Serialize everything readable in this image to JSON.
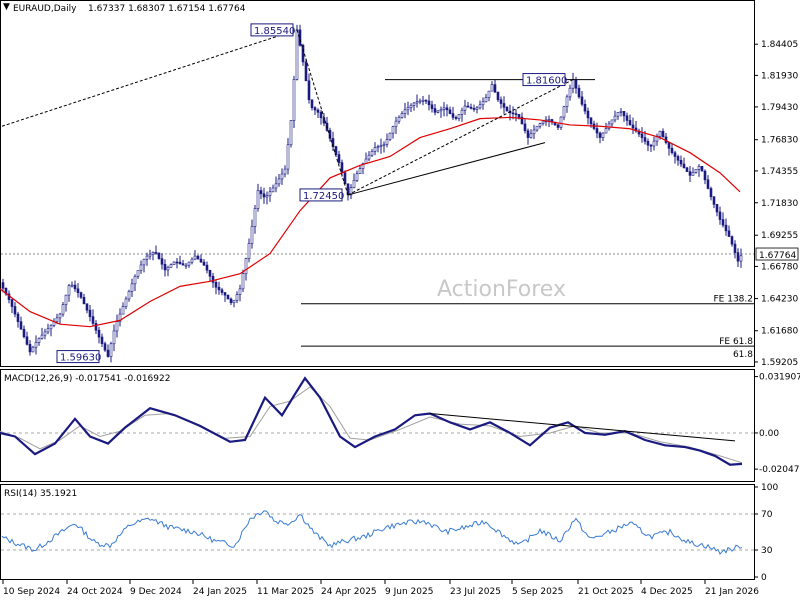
{
  "header": {
    "symbol": "EURAUD,Daily",
    "ohlc": "1.67337 1.68307 1.67154 1.67764",
    "macd": "MACD(12,26,9) -0.017541 -0.016922",
    "rsi": "RSI(14) 35.1921",
    "watermark": "ActionForex"
  },
  "colors": {
    "candles": "#1a1a80",
    "ma": "#e00000",
    "macd_line": "#1a1a80",
    "signal_line": "#a0a0a0",
    "rsi_line": "#3a7bd5"
  },
  "chart_data": [
    {
      "type": "candlestick",
      "title": "",
      "series": [
        {
          "name": "",
          "kind": "price"
        },
        {
          "name": "",
          "kind": "moving-average"
        }
      ],
      "ylim": [
        1.592,
        1.868
      ],
      "y_ticks": [
        "1.84405",
        "1.81930",
        "1.79430",
        "1.76830",
        "1.74355",
        "1.71830",
        "1.69255",
        "1.66780",
        "1.64230",
        "1.61680",
        "1.59205"
      ],
      "current_price": "1.67764",
      "x_ticks": [
        "10 Sep 2024",
        "24 Oct 2024",
        "9 Dec 2024",
        "24 Jan 2025",
        "11 Mar 2025",
        "24 Apr 2025",
        "9 Jun 2025",
        "23 Jul 2025",
        "5 Sep 2025",
        "21 Oct 2025",
        "4 Dec 2025",
        "21 Jan 2026"
      ],
      "price_path": [
        [
          0,
          1.655
        ],
        [
          10,
          1.64
        ],
        [
          20,
          1.62
        ],
        [
          30,
          1.6
        ],
        [
          38,
          1.61
        ],
        [
          50,
          1.62
        ],
        [
          60,
          1.63
        ],
        [
          70,
          1.655
        ],
        [
          80,
          1.645
        ],
        [
          90,
          1.628
        ],
        [
          100,
          1.61
        ],
        [
          108,
          1.5963
        ],
        [
          115,
          1.62
        ],
        [
          125,
          1.64
        ],
        [
          135,
          1.66
        ],
        [
          145,
          1.675
        ],
        [
          155,
          1.68
        ],
        [
          165,
          1.665
        ],
        [
          175,
          1.672
        ],
        [
          185,
          1.668
        ],
        [
          195,
          1.676
        ],
        [
          205,
          1.668
        ],
        [
          215,
          1.652
        ],
        [
          225,
          1.645
        ],
        [
          232,
          1.638
        ],
        [
          240,
          1.65
        ],
        [
          250,
          1.69
        ],
        [
          258,
          1.728
        ],
        [
          265,
          1.722
        ],
        [
          275,
          1.732
        ],
        [
          285,
          1.745
        ],
        [
          292,
          1.79
        ],
        [
          297,
          1.8554
        ],
        [
          302,
          1.835
        ],
        [
          310,
          1.795
        ],
        [
          318,
          1.79
        ],
        [
          325,
          1.78
        ],
        [
          332,
          1.765
        ],
        [
          340,
          1.748
        ],
        [
          348,
          1.7245
        ],
        [
          356,
          1.74
        ],
        [
          365,
          1.752
        ],
        [
          375,
          1.762
        ],
        [
          385,
          1.765
        ],
        [
          395,
          1.782
        ],
        [
          405,
          1.792
        ],
        [
          415,
          1.798
        ],
        [
          425,
          1.8
        ],
        [
          435,
          1.79
        ],
        [
          445,
          1.794
        ],
        [
          455,
          1.784
        ],
        [
          465,
          1.795
        ],
        [
          475,
          1.792
        ],
        [
          485,
          1.8
        ],
        [
          492,
          1.812
        ],
        [
          498,
          1.8
        ],
        [
          508,
          1.79
        ],
        [
          518,
          1.788
        ],
        [
          528,
          1.77
        ],
        [
          538,
          1.78
        ],
        [
          548,
          1.785
        ],
        [
          558,
          1.778
        ],
        [
          566,
          1.8
        ],
        [
          573,
          1.816
        ],
        [
          580,
          1.8
        ],
        [
          590,
          1.782
        ],
        [
          600,
          1.77
        ],
        [
          610,
          1.782
        ],
        [
          620,
          1.792
        ],
        [
          630,
          1.78
        ],
        [
          640,
          1.772
        ],
        [
          650,
          1.762
        ],
        [
          660,
          1.775
        ],
        [
          670,
          1.76
        ],
        [
          680,
          1.75
        ],
        [
          690,
          1.74
        ],
        [
          700,
          1.748
        ],
        [
          710,
          1.725
        ],
        [
          720,
          1.705
        ],
        [
          730,
          1.69
        ],
        [
          738,
          1.672
        ],
        [
          742,
          1.67764
        ]
      ],
      "ma_path": [
        [
          0,
          1.65
        ],
        [
          30,
          1.632
        ],
        [
          60,
          1.622
        ],
        [
          90,
          1.62
        ],
        [
          120,
          1.625
        ],
        [
          150,
          1.64
        ],
        [
          180,
          1.652
        ],
        [
          210,
          1.656
        ],
        [
          240,
          1.662
        ],
        [
          270,
          1.678
        ],
        [
          300,
          1.712
        ],
        [
          330,
          1.738
        ],
        [
          360,
          1.748
        ],
        [
          390,
          1.755
        ],
        [
          420,
          1.77
        ],
        [
          450,
          1.777
        ],
        [
          480,
          1.785
        ],
        [
          510,
          1.786
        ],
        [
          540,
          1.784
        ],
        [
          570,
          1.78
        ],
        [
          600,
          1.779
        ],
        [
          630,
          1.777
        ],
        [
          660,
          1.77
        ],
        [
          690,
          1.758
        ],
        [
          720,
          1.742
        ],
        [
          740,
          1.727
        ]
      ],
      "annotations": [
        {
          "label": "1.85540",
          "value": 1.8554
        },
        {
          "label": "1.81600",
          "value": 1.816
        },
        {
          "label": "1.72450",
          "value": 1.7245
        },
        {
          "label": "1.59630",
          "value": 1.5963
        },
        {
          "label": "FE 138.2",
          "value": 1.6382
        },
        {
          "label": "FE 61.8",
          "value": 1.6046
        },
        {
          "label": "61.8",
          "value": 1.5945
        }
      ]
    },
    {
      "type": "line",
      "title": "MACD(12,26,9)",
      "series": [
        {
          "name": "MACD"
        },
        {
          "name": "Signal"
        }
      ],
      "ylim": [
        -0.0255,
        0.0345
      ],
      "y_ticks": [
        "0.031907",
        "0.00",
        "-0.020479"
      ],
      "macd_path": [
        [
          0,
          0.0
        ],
        [
          15,
          -0.002
        ],
        [
          35,
          -0.012
        ],
        [
          55,
          -0.006
        ],
        [
          75,
          0.008
        ],
        [
          90,
          -0.002
        ],
        [
          108,
          -0.006
        ],
        [
          125,
          0.003
        ],
        [
          150,
          0.014
        ],
        [
          175,
          0.01
        ],
        [
          200,
          0.004
        ],
        [
          230,
          -0.005
        ],
        [
          245,
          -0.004
        ],
        [
          265,
          0.02
        ],
        [
          282,
          0.01
        ],
        [
          295,
          0.022
        ],
        [
          305,
          0.031
        ],
        [
          320,
          0.02
        ],
        [
          340,
          -0.002
        ],
        [
          355,
          -0.008
        ],
        [
          375,
          -0.002
        ],
        [
          395,
          0.002
        ],
        [
          415,
          0.01
        ],
        [
          430,
          0.011
        ],
        [
          450,
          0.006
        ],
        [
          470,
          0.002
        ],
        [
          490,
          0.006
        ],
        [
          510,
          0.0
        ],
        [
          530,
          -0.007
        ],
        [
          550,
          0.003
        ],
        [
          568,
          0.006
        ],
        [
          585,
          0.0
        ],
        [
          605,
          -0.001
        ],
        [
          625,
          0.001
        ],
        [
          645,
          -0.004
        ],
        [
          665,
          -0.007
        ],
        [
          685,
          -0.008
        ],
        [
          700,
          -0.01
        ],
        [
          715,
          -0.013
        ],
        [
          730,
          -0.018
        ],
        [
          742,
          -0.0175
        ]
      ],
      "signal_path": [
        [
          0,
          0.001
        ],
        [
          20,
          -0.003
        ],
        [
          40,
          -0.009
        ],
        [
          60,
          -0.004
        ],
        [
          80,
          0.004
        ],
        [
          100,
          -0.002
        ],
        [
          120,
          0.001
        ],
        [
          145,
          0.01
        ],
        [
          170,
          0.011
        ],
        [
          195,
          0.005
        ],
        [
          225,
          -0.003
        ],
        [
          250,
          -0.002
        ],
        [
          270,
          0.015
        ],
        [
          290,
          0.018
        ],
        [
          310,
          0.026
        ],
        [
          330,
          0.015
        ],
        [
          350,
          -0.003
        ],
        [
          370,
          -0.004
        ],
        [
          400,
          0.002
        ],
        [
          430,
          0.009
        ],
        [
          460,
          0.005
        ],
        [
          490,
          0.004
        ],
        [
          520,
          -0.002
        ],
        [
          550,
          0.0
        ],
        [
          575,
          0.004
        ],
        [
          600,
          0.0
        ],
        [
          630,
          0.0
        ],
        [
          660,
          -0.005
        ],
        [
          690,
          -0.008
        ],
        [
          720,
          -0.013
        ],
        [
          742,
          -0.0169
        ]
      ]
    },
    {
      "type": "line",
      "title": "RSI(14)",
      "series": [
        {
          "name": "RSI"
        }
      ],
      "ylim": [
        0,
        100
      ],
      "y_ticks": [
        "100",
        "70",
        "30",
        "0"
      ],
      "rsi_path": [
        [
          0,
          45
        ],
        [
          15,
          38
        ],
        [
          35,
          30
        ],
        [
          55,
          45
        ],
        [
          75,
          60
        ],
        [
          95,
          38
        ],
        [
          110,
          35
        ],
        [
          130,
          58
        ],
        [
          150,
          65
        ],
        [
          170,
          55
        ],
        [
          195,
          50
        ],
        [
          215,
          40
        ],
        [
          235,
          35
        ],
        [
          250,
          65
        ],
        [
          265,
          75
        ],
        [
          275,
          62
        ],
        [
          290,
          60
        ],
        [
          300,
          70
        ],
        [
          315,
          48
        ],
        [
          330,
          35
        ],
        [
          345,
          40
        ],
        [
          365,
          45
        ],
        [
          385,
          55
        ],
        [
          405,
          60
        ],
        [
          425,
          62
        ],
        [
          445,
          50
        ],
        [
          465,
          55
        ],
        [
          485,
          62
        ],
        [
          505,
          45
        ],
        [
          520,
          35
        ],
        [
          540,
          52
        ],
        [
          560,
          40
        ],
        [
          575,
          65
        ],
        [
          590,
          42
        ],
        [
          610,
          50
        ],
        [
          630,
          60
        ],
        [
          650,
          45
        ],
        [
          670,
          50
        ],
        [
          690,
          38
        ],
        [
          705,
          35
        ],
        [
          720,
          28
        ],
        [
          735,
          32
        ],
        [
          742,
          35
        ]
      ]
    }
  ]
}
